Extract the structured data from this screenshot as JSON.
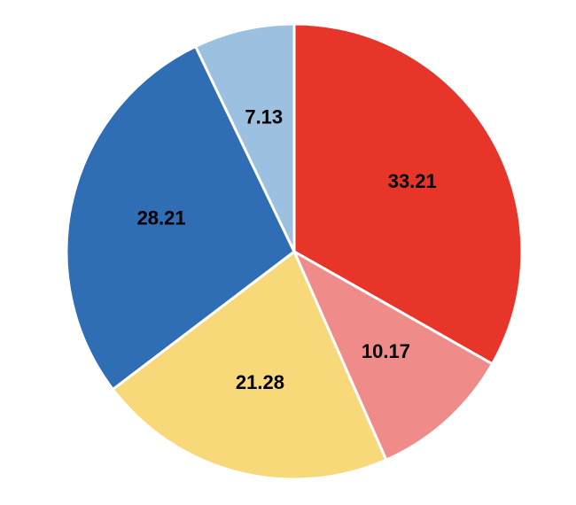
{
  "chart_data": {
    "type": "pie",
    "values": [
      33.21,
      10.17,
      21.28,
      28.21,
      7.13
    ],
    "colors": [
      "#e8352a",
      "#ef8c89",
      "#f7d97a",
      "#2f6db5",
      "#9bc0e0"
    ]
  }
}
